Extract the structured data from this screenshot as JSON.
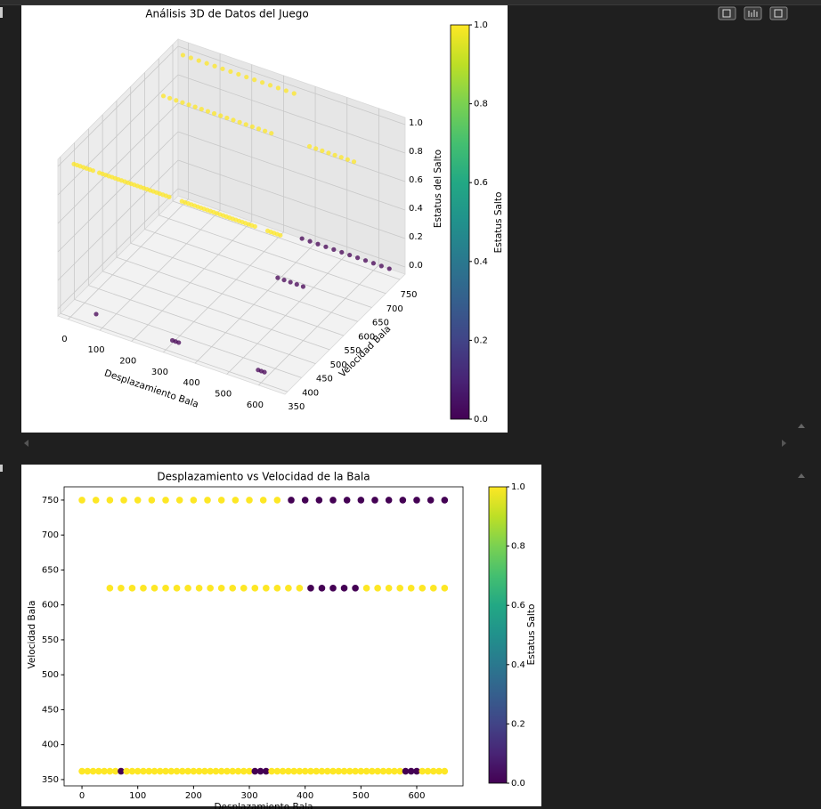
{
  "chart_data": [
    {
      "type": "scatter3d",
      "title": "Análisis 3D de Datos del Juego",
      "xlabel": "Desplazamiento Bala",
      "ylabel": "Velocidad Bala",
      "zlabel": "Estatus del Salto",
      "xlim": [
        -32,
        683
      ],
      "ylim": [
        341,
        769
      ],
      "zlim": [
        -0.05,
        1.05
      ],
      "xticks": [
        0,
        100,
        200,
        300,
        400,
        500,
        600
      ],
      "yticks": [
        350,
        400,
        450,
        500,
        550,
        600,
        650,
        700,
        750
      ],
      "zticks": [
        {
          "value": 0,
          "label": "0.0"
        },
        0.2,
        0.4,
        0.6,
        0.8,
        {
          "value": 1,
          "label": "1.0"
        }
      ],
      "grid": true,
      "colormap": "viridis",
      "colorbar": {
        "label": "Estatus Salto",
        "clim": [
          0,
          1
        ],
        "ticks": [
          {
            "value": 0,
            "label": "0.0"
          },
          0.2,
          0.4,
          0.6,
          0.8,
          {
            "value": 1,
            "label": "1.0"
          }
        ]
      },
      "x": [
        0,
        25,
        50,
        75,
        100,
        125,
        150,
        175,
        200,
        225,
        250,
        275,
        300,
        325,
        350,
        375,
        400,
        425,
        450,
        475,
        500,
        525,
        550,
        575,
        600,
        625,
        650,
        50,
        70,
        90,
        110,
        130,
        150,
        170,
        190,
        210,
        230,
        250,
        270,
        290,
        310,
        330,
        350,
        370,
        390,
        410,
        430,
        450,
        470,
        490,
        510,
        530,
        550,
        570,
        590,
        610,
        630,
        650,
        0,
        10,
        20,
        30,
        40,
        50,
        60,
        70,
        80,
        90,
        100,
        110,
        120,
        130,
        140,
        150,
        160,
        170,
        180,
        190,
        200,
        210,
        220,
        230,
        240,
        250,
        260,
        270,
        280,
        290,
        300,
        310,
        320,
        330,
        340,
        350,
        360,
        370,
        380,
        390,
        400,
        410,
        420,
        430,
        440,
        450,
        460,
        470,
        480,
        490,
        500,
        510,
        520,
        530,
        540,
        550,
        560,
        570,
        580,
        590,
        600,
        610,
        620,
        630,
        640,
        650
      ],
      "y": [
        750,
        750,
        750,
        750,
        750,
        750,
        750,
        750,
        750,
        750,
        750,
        750,
        750,
        750,
        750,
        750,
        750,
        750,
        750,
        750,
        750,
        750,
        750,
        750,
        750,
        750,
        750,
        624,
        624,
        624,
        624,
        624,
        624,
        624,
        624,
        624,
        624,
        624,
        624,
        624,
        624,
        624,
        624,
        624,
        624,
        624,
        624,
        624,
        624,
        624,
        624,
        624,
        624,
        624,
        624,
        624,
        624,
        624,
        362,
        362,
        362,
        362,
        362,
        362,
        362,
        362,
        362,
        362,
        362,
        362,
        362,
        362,
        362,
        362,
        362,
        362,
        362,
        362,
        362,
        362,
        362,
        362,
        362,
        362,
        362,
        362,
        362,
        362,
        362,
        362,
        362,
        362,
        362,
        362,
        362,
        362,
        362,
        362,
        362,
        362,
        362,
        362,
        362,
        362,
        362,
        362,
        362,
        362,
        362,
        362,
        362,
        362,
        362,
        362,
        362,
        362,
        362,
        362,
        362,
        362,
        362,
        362,
        362,
        362
      ],
      "z": [
        1,
        1,
        1,
        1,
        1,
        1,
        1,
        1,
        1,
        1,
        1,
        1,
        1,
        1,
        1,
        0,
        0,
        0,
        0,
        0,
        0,
        0,
        0,
        0,
        0,
        0,
        0,
        1,
        1,
        1,
        1,
        1,
        1,
        1,
        1,
        1,
        1,
        1,
        1,
        1,
        1,
        1,
        1,
        1,
        1,
        0,
        0,
        0,
        0,
        0,
        1,
        1,
        1,
        1,
        1,
        1,
        1,
        1,
        1,
        1,
        1,
        1,
        1,
        1,
        1,
        0,
        1,
        1,
        1,
        1,
        1,
        1,
        1,
        1,
        1,
        1,
        1,
        1,
        1,
        1,
        1,
        1,
        1,
        1,
        1,
        1,
        1,
        1,
        1,
        0,
        0,
        0,
        1,
        1,
        1,
        1,
        1,
        1,
        1,
        1,
        1,
        1,
        1,
        1,
        1,
        1,
        1,
        1,
        1,
        1,
        1,
        1,
        1,
        1,
        1,
        1,
        0,
        0,
        0,
        1,
        1,
        1,
        1,
        1
      ]
    },
    {
      "type": "scatter",
      "title": "Desplazamiento vs Velocidad de la Bala",
      "xlabel": "Desplazamiento Bala",
      "ylabel": "Velocidad Bala",
      "xlim": [
        -32,
        683
      ],
      "ylim": [
        341,
        769
      ],
      "xticks": [
        0,
        100,
        200,
        300,
        400,
        500,
        600
      ],
      "yticks": [
        350,
        400,
        450,
        500,
        550,
        600,
        650,
        700,
        750
      ],
      "colormap": "viridis",
      "colorbar": {
        "label": "Estatus Salto",
        "clim": [
          0,
          1
        ],
        "ticks": [
          {
            "value": 0,
            "label": "0.0"
          },
          0.2,
          0.4,
          0.6,
          0.8,
          {
            "value": 1,
            "label": "1.0"
          }
        ]
      },
      "x": [
        0,
        25,
        50,
        75,
        100,
        125,
        150,
        175,
        200,
        225,
        250,
        275,
        300,
        325,
        350,
        375,
        400,
        425,
        450,
        475,
        500,
        525,
        550,
        575,
        600,
        625,
        650,
        50,
        70,
        90,
        110,
        130,
        150,
        170,
        190,
        210,
        230,
        250,
        270,
        290,
        310,
        330,
        350,
        370,
        390,
        410,
        430,
        450,
        470,
        490,
        510,
        530,
        550,
        570,
        590,
        610,
        630,
        650,
        0,
        10,
        20,
        30,
        40,
        50,
        60,
        70,
        80,
        90,
        100,
        110,
        120,
        130,
        140,
        150,
        160,
        170,
        180,
        190,
        200,
        210,
        220,
        230,
        240,
        250,
        260,
        270,
        280,
        290,
        300,
        310,
        320,
        330,
        340,
        350,
        360,
        370,
        380,
        390,
        400,
        410,
        420,
        430,
        440,
        450,
        460,
        470,
        480,
        490,
        500,
        510,
        520,
        530,
        540,
        550,
        560,
        570,
        580,
        590,
        600,
        610,
        620,
        630,
        640,
        650
      ],
      "y": [
        750,
        750,
        750,
        750,
        750,
        750,
        750,
        750,
        750,
        750,
        750,
        750,
        750,
        750,
        750,
        750,
        750,
        750,
        750,
        750,
        750,
        750,
        750,
        750,
        750,
        750,
        750,
        624,
        624,
        624,
        624,
        624,
        624,
        624,
        624,
        624,
        624,
        624,
        624,
        624,
        624,
        624,
        624,
        624,
        624,
        624,
        624,
        624,
        624,
        624,
        624,
        624,
        624,
        624,
        624,
        624,
        624,
        624,
        362,
        362,
        362,
        362,
        362,
        362,
        362,
        362,
        362,
        362,
        362,
        362,
        362,
        362,
        362,
        362,
        362,
        362,
        362,
        362,
        362,
        362,
        362,
        362,
        362,
        362,
        362,
        362,
        362,
        362,
        362,
        362,
        362,
        362,
        362,
        362,
        362,
        362,
        362,
        362,
        362,
        362,
        362,
        362,
        362,
        362,
        362,
        362,
        362,
        362,
        362,
        362,
        362,
        362,
        362,
        362,
        362,
        362,
        362,
        362,
        362,
        362,
        362,
        362,
        362,
        362
      ],
      "values": [
        1,
        1,
        1,
        1,
        1,
        1,
        1,
        1,
        1,
        1,
        1,
        1,
        1,
        1,
        1,
        0,
        0,
        0,
        0,
        0,
        0,
        0,
        0,
        0,
        0,
        0,
        0,
        1,
        1,
        1,
        1,
        1,
        1,
        1,
        1,
        1,
        1,
        1,
        1,
        1,
        1,
        1,
        1,
        1,
        1,
        0,
        0,
        0,
        0,
        0,
        1,
        1,
        1,
        1,
        1,
        1,
        1,
        1,
        1,
        1,
        1,
        1,
        1,
        1,
        1,
        0,
        1,
        1,
        1,
        1,
        1,
        1,
        1,
        1,
        1,
        1,
        1,
        1,
        1,
        1,
        1,
        1,
        1,
        1,
        1,
        1,
        1,
        1,
        1,
        0,
        0,
        0,
        1,
        1,
        1,
        1,
        1,
        1,
        1,
        1,
        1,
        1,
        1,
        1,
        1,
        1,
        1,
        1,
        1,
        1,
        1,
        1,
        1,
        1,
        1,
        1,
        0,
        0,
        0,
        1,
        1,
        1,
        1,
        1
      ]
    }
  ]
}
